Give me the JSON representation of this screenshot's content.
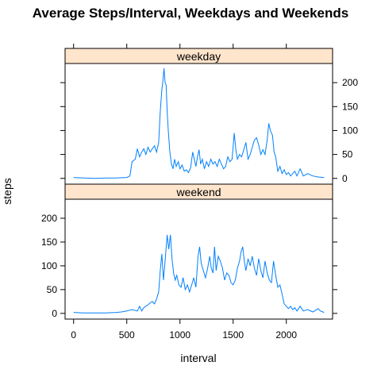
{
  "chart_data": {
    "type": "line",
    "title": "Average Steps/Interval, Weekdays and Weekends",
    "xlabel": "interval",
    "ylabel": "steps",
    "xlim": [
      -80,
      2435
    ],
    "ylim": [
      -12,
      240
    ],
    "xticks": [
      0,
      500,
      1000,
      1500,
      2000
    ],
    "yticks": [
      0,
      50,
      100,
      150,
      200
    ],
    "line_color": "#0080ff",
    "strip_fill": "#ffe5cc",
    "panels": [
      {
        "name": "weekday",
        "points": [
          [
            0,
            2
          ],
          [
            100,
            1
          ],
          [
            200,
            0
          ],
          [
            300,
            1
          ],
          [
            400,
            1
          ],
          [
            500,
            2
          ],
          [
            530,
            5
          ],
          [
            550,
            35
          ],
          [
            580,
            40
          ],
          [
            600,
            62
          ],
          [
            620,
            45
          ],
          [
            640,
            55
          ],
          [
            660,
            62
          ],
          [
            680,
            50
          ],
          [
            700,
            65
          ],
          [
            720,
            55
          ],
          [
            740,
            62
          ],
          [
            760,
            68
          ],
          [
            780,
            55
          ],
          [
            800,
            75
          ],
          [
            815,
            140
          ],
          [
            830,
            185
          ],
          [
            840,
            205
          ],
          [
            850,
            230
          ],
          [
            860,
            200
          ],
          [
            870,
            195
          ],
          [
            880,
            140
          ],
          [
            890,
            100
          ],
          [
            905,
            55
          ],
          [
            920,
            30
          ],
          [
            935,
            20
          ],
          [
            950,
            40
          ],
          [
            965,
            25
          ],
          [
            985,
            35
          ],
          [
            1000,
            20
          ],
          [
            1020,
            28
          ],
          [
            1040,
            15
          ],
          [
            1060,
            18
          ],
          [
            1080,
            12
          ],
          [
            1100,
            22
          ],
          [
            1120,
            55
          ],
          [
            1135,
            40
          ],
          [
            1150,
            25
          ],
          [
            1165,
            45
          ],
          [
            1180,
            60
          ],
          [
            1195,
            30
          ],
          [
            1210,
            40
          ],
          [
            1230,
            20
          ],
          [
            1250,
            35
          ],
          [
            1270,
            25
          ],
          [
            1290,
            40
          ],
          [
            1310,
            30
          ],
          [
            1330,
            35
          ],
          [
            1350,
            25
          ],
          [
            1370,
            40
          ],
          [
            1390,
            30
          ],
          [
            1410,
            20
          ],
          [
            1430,
            25
          ],
          [
            1450,
            45
          ],
          [
            1470,
            35
          ],
          [
            1490,
            40
          ],
          [
            1510,
            95
          ],
          [
            1525,
            60
          ],
          [
            1540,
            40
          ],
          [
            1560,
            50
          ],
          [
            1580,
            45
          ],
          [
            1600,
            60
          ],
          [
            1620,
            75
          ],
          [
            1640,
            40
          ],
          [
            1660,
            50
          ],
          [
            1680,
            65
          ],
          [
            1700,
            80
          ],
          [
            1720,
            85
          ],
          [
            1740,
            70
          ],
          [
            1760,
            50
          ],
          [
            1780,
            60
          ],
          [
            1800,
            50
          ],
          [
            1820,
            80
          ],
          [
            1835,
            115
          ],
          [
            1850,
            100
          ],
          [
            1870,
            90
          ],
          [
            1885,
            55
          ],
          [
            1900,
            45
          ],
          [
            1920,
            15
          ],
          [
            1940,
            25
          ],
          [
            1960,
            10
          ],
          [
            1980,
            18
          ],
          [
            2000,
            8
          ],
          [
            2020,
            12
          ],
          [
            2040,
            5
          ],
          [
            2060,
            10
          ],
          [
            2080,
            15
          ],
          [
            2100,
            5
          ],
          [
            2130,
            20
          ],
          [
            2160,
            5
          ],
          [
            2200,
            10
          ],
          [
            2250,
            5
          ],
          [
            2300,
            3
          ],
          [
            2355,
            2
          ]
        ]
      },
      {
        "name": "weekend",
        "points": [
          [
            0,
            2
          ],
          [
            100,
            1
          ],
          [
            200,
            1
          ],
          [
            300,
            1
          ],
          [
            400,
            2
          ],
          [
            450,
            3
          ],
          [
            500,
            5
          ],
          [
            550,
            8
          ],
          [
            600,
            5
          ],
          [
            620,
            15
          ],
          [
            640,
            5
          ],
          [
            660,
            12
          ],
          [
            680,
            15
          ],
          [
            700,
            18
          ],
          [
            720,
            22
          ],
          [
            740,
            25
          ],
          [
            760,
            20
          ],
          [
            780,
            30
          ],
          [
            800,
            45
          ],
          [
            815,
            90
          ],
          [
            830,
            125
          ],
          [
            845,
            70
          ],
          [
            860,
            110
          ],
          [
            880,
            165
          ],
          [
            895,
            135
          ],
          [
            910,
            165
          ],
          [
            925,
            115
          ],
          [
            940,
            85
          ],
          [
            955,
            70
          ],
          [
            970,
            80
          ],
          [
            990,
            60
          ],
          [
            1010,
            55
          ],
          [
            1030,
            75
          ],
          [
            1050,
            50
          ],
          [
            1070,
            60
          ],
          [
            1090,
            45
          ],
          [
            1110,
            60
          ],
          [
            1130,
            75
          ],
          [
            1150,
            55
          ],
          [
            1170,
            120
          ],
          [
            1185,
            140
          ],
          [
            1200,
            105
          ],
          [
            1220,
            90
          ],
          [
            1240,
            75
          ],
          [
            1260,
            95
          ],
          [
            1280,
            120
          ],
          [
            1295,
            95
          ],
          [
            1310,
            85
          ],
          [
            1325,
            140
          ],
          [
            1340,
            90
          ],
          [
            1360,
            120
          ],
          [
            1380,
            110
          ],
          [
            1400,
            95
          ],
          [
            1420,
            70
          ],
          [
            1440,
            85
          ],
          [
            1460,
            80
          ],
          [
            1480,
            65
          ],
          [
            1500,
            60
          ],
          [
            1520,
            70
          ],
          [
            1540,
            95
          ],
          [
            1560,
            110
          ],
          [
            1575,
            130
          ],
          [
            1590,
            140
          ],
          [
            1605,
            110
          ],
          [
            1620,
            90
          ],
          [
            1640,
            115
          ],
          [
            1660,
            100
          ],
          [
            1680,
            120
          ],
          [
            1700,
            95
          ],
          [
            1720,
            80
          ],
          [
            1740,
            115
          ],
          [
            1760,
            90
          ],
          [
            1780,
            75
          ],
          [
            1800,
            110
          ],
          [
            1820,
            85
          ],
          [
            1840,
            70
          ],
          [
            1860,
            65
          ],
          [
            1880,
            110
          ],
          [
            1900,
            80
          ],
          [
            1920,
            55
          ],
          [
            1940,
            60
          ],
          [
            1960,
            40
          ],
          [
            1980,
            20
          ],
          [
            2000,
            15
          ],
          [
            2020,
            10
          ],
          [
            2040,
            15
          ],
          [
            2060,
            8
          ],
          [
            2080,
            12
          ],
          [
            2100,
            5
          ],
          [
            2130,
            15
          ],
          [
            2160,
            5
          ],
          [
            2200,
            8
          ],
          [
            2250,
            3
          ],
          [
            2300,
            10
          ],
          [
            2320,
            5
          ],
          [
            2355,
            2
          ]
        ]
      }
    ]
  }
}
